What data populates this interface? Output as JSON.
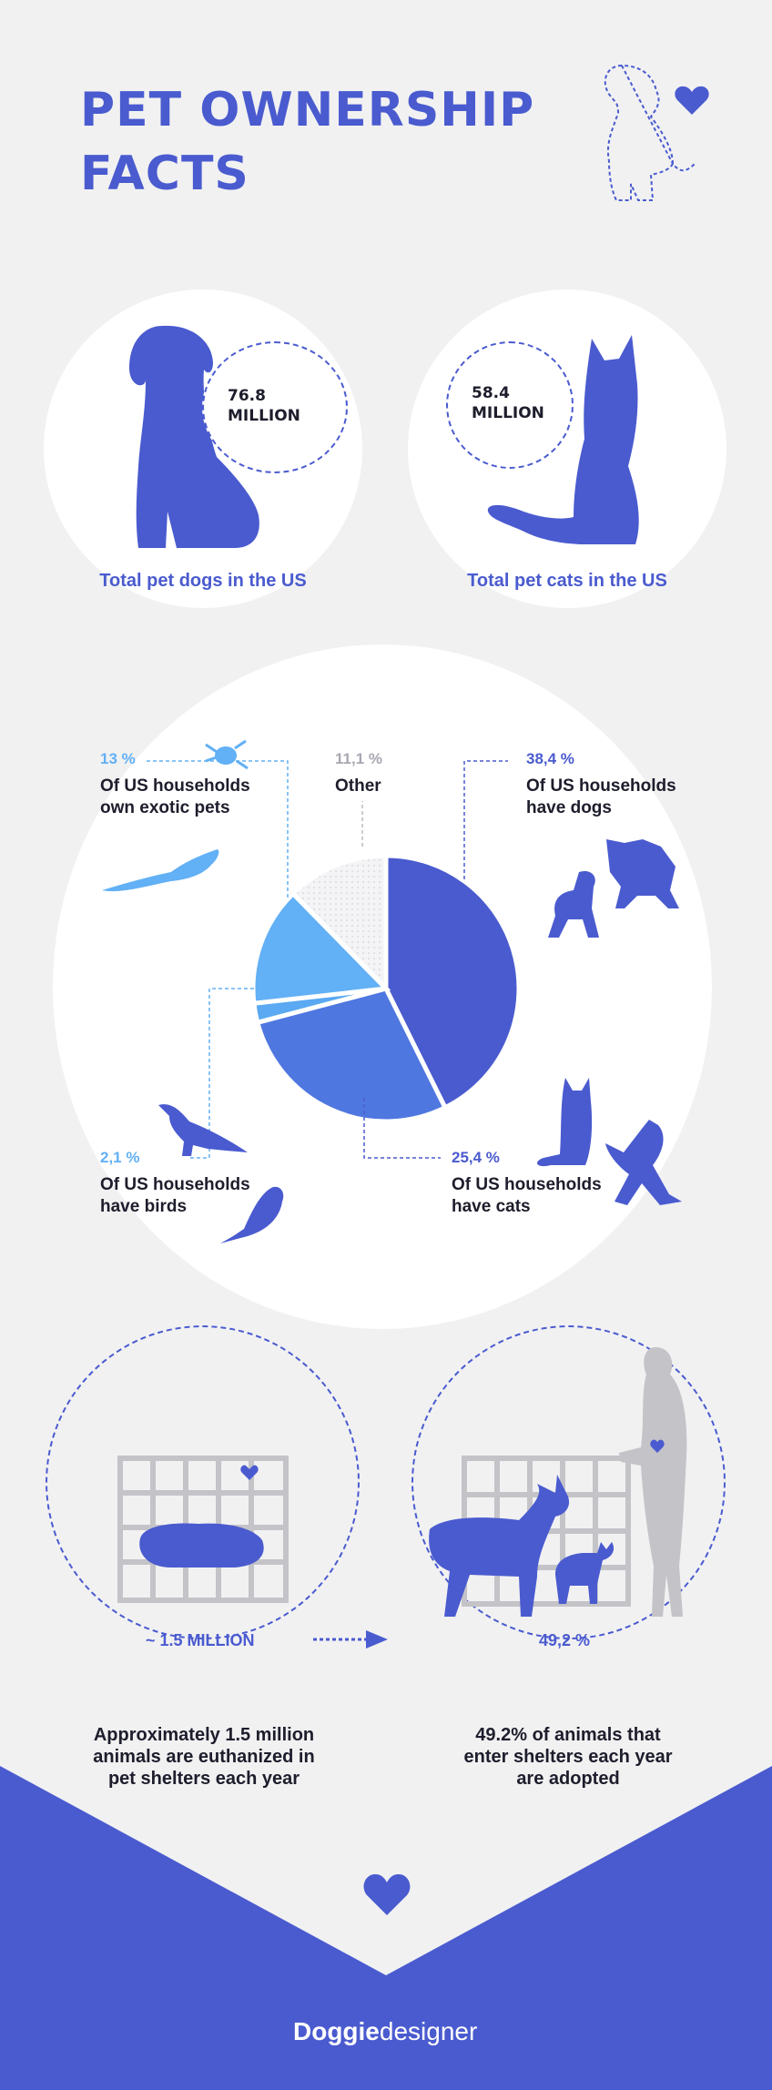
{
  "title": "PET OWNERSHIP\nFACTS",
  "dogs": {
    "value": "76.8\nMILLION",
    "caption": "Total pet dogs in the US"
  },
  "cats": {
    "value": "58.4\nMILLION",
    "caption": "Total pet cats in the US"
  },
  "chart_data": {
    "type": "pie",
    "slices": [
      {
        "pct_label": "38,4 %",
        "label": "Of US households\nhave dogs",
        "value": 38.4,
        "color": "#4a5bcf"
      },
      {
        "pct_label": "25,4 %",
        "label": "Of US households\nhave cats",
        "value": 25.4,
        "color": "#4f77e0"
      },
      {
        "pct_label": "2,1 %",
        "label": "Of US households\nhave birds",
        "value": 2.1,
        "color": "#5aa9f2"
      },
      {
        "pct_label": "13 %",
        "label": "Of US households\nown exotic pets",
        "value": 13,
        "color": "#62b0f5"
      },
      {
        "pct_label": "11,1 %",
        "label": "Other",
        "value": 11.1,
        "color": "#e8e8ec"
      }
    ]
  },
  "shelter": {
    "euthanized_value": "~ 1.5 MILLION",
    "euthanized_text": "Approximately 1.5 million\nanimals are euthanized in\npet shelters each year",
    "adopted_value": "49,2 %",
    "adopted_text": "49.2% of animals that\nenter shelters each year\nare adopted"
  },
  "brand": {
    "bold": "Doggie",
    "light": "designer"
  },
  "colors": {
    "accent": "#4a5bcf",
    "light_blue": "#62b0f5",
    "background": "#f1f1f2"
  }
}
